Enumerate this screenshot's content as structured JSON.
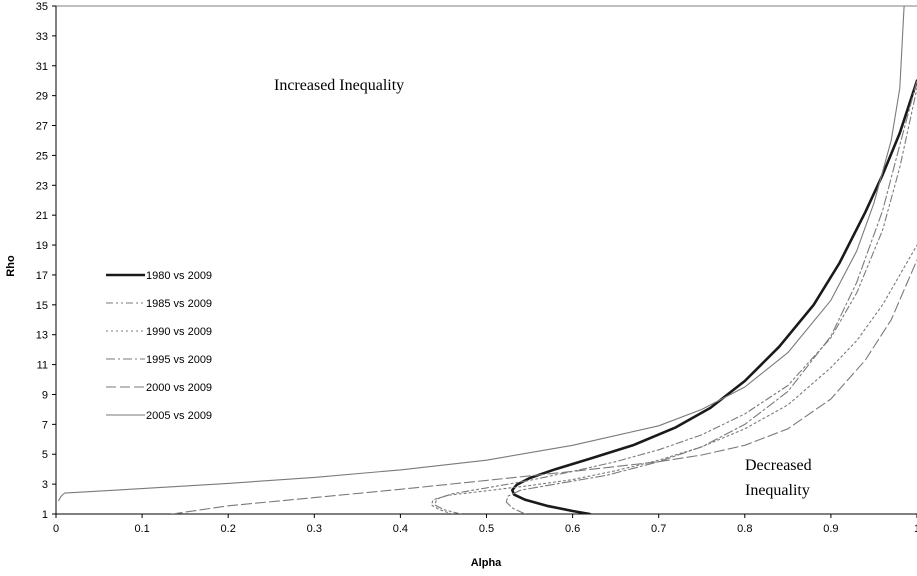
{
  "chart_data": {
    "type": "line",
    "title": "",
    "xlabel": "Alpha",
    "ylabel": "Rho",
    "xlim": [
      0,
      1
    ],
    "ylim": [
      1,
      35
    ],
    "x_ticks": [
      "0",
      "0.1",
      "0.2",
      "0.3",
      "0.4",
      "0.5",
      "0.6",
      "0.7",
      "0.8",
      "0.9",
      "1"
    ],
    "y_ticks": [
      "1",
      "3",
      "5",
      "7",
      "9",
      "11",
      "13",
      "15",
      "17",
      "19",
      "21",
      "23",
      "25",
      "27",
      "29",
      "31",
      "33",
      "35"
    ],
    "grid": false,
    "legend": "left-middle",
    "annotations": [
      "Increased Inequality",
      "Decreased Inequality"
    ],
    "series": [
      {
        "name": "1980 vs 2009",
        "color": "#1a1a1a",
        "dash": "solid",
        "x": [
          0.62,
          0.6,
          0.57,
          0.545,
          0.532,
          0.53,
          0.535,
          0.55,
          0.58,
          0.62,
          0.67,
          0.72,
          0.76,
          0.8,
          0.84,
          0.88,
          0.91,
          0.94,
          0.96,
          0.98,
          1.0
        ],
        "y": [
          1.0,
          1.2,
          1.55,
          1.95,
          2.3,
          2.6,
          2.95,
          3.4,
          4.0,
          4.7,
          5.6,
          6.8,
          8.1,
          9.9,
          12.2,
          15.0,
          17.8,
          21.2,
          23.7,
          26.5,
          30.0
        ]
      },
      {
        "name": "1985 vs 2009",
        "color": "#7a7a7a",
        "dash": "dash-dot-dot",
        "x": [
          0.47,
          0.45,
          0.44,
          0.442,
          0.46,
          0.5,
          0.55,
          0.6,
          0.65,
          0.7,
          0.75,
          0.8,
          0.85,
          0.9,
          0.93,
          0.96,
          0.98,
          1.0
        ],
        "y": [
          1.0,
          1.3,
          1.6,
          2.0,
          2.35,
          2.75,
          3.25,
          3.85,
          4.5,
          5.3,
          6.3,
          7.7,
          9.6,
          12.8,
          15.8,
          20.0,
          24.2,
          29.5
        ]
      },
      {
        "name": "1990 vs 2009",
        "color": "#7a7a7a",
        "dash": "dotted",
        "x": [
          0.46,
          0.445,
          0.436,
          0.438,
          0.455,
          0.5,
          0.55,
          0.6,
          0.65,
          0.7,
          0.75,
          0.8,
          0.85,
          0.9,
          0.93,
          0.96,
          0.98,
          1.0
        ],
        "y": [
          1.0,
          1.3,
          1.6,
          1.95,
          2.25,
          2.55,
          2.9,
          3.3,
          3.9,
          4.6,
          5.5,
          6.7,
          8.3,
          10.8,
          12.6,
          15.0,
          17.0,
          19.0
        ]
      },
      {
        "name": "1995 vs 2009",
        "color": "#7a7a7a",
        "dash": "dash-dot",
        "x": [
          0.545,
          0.53,
          0.523,
          0.525,
          0.54,
          0.58,
          0.64,
          0.7,
          0.75,
          0.8,
          0.85,
          0.9,
          0.93,
          0.96,
          0.98,
          1.0
        ],
        "y": [
          1.0,
          1.4,
          1.8,
          2.2,
          2.6,
          3.0,
          3.6,
          4.5,
          5.5,
          7.0,
          9.2,
          12.9,
          16.5,
          21.3,
          25.7,
          30.0
        ]
      },
      {
        "name": "2000 vs 2009",
        "color": "#7a7a7a",
        "dash": "long-dash",
        "x": [
          0.135,
          0.2,
          0.3,
          0.4,
          0.5,
          0.6,
          0.7,
          0.75,
          0.8,
          0.85,
          0.9,
          0.94,
          0.97,
          1.0
        ],
        "y": [
          1.0,
          1.55,
          2.1,
          2.65,
          3.25,
          3.85,
          4.5,
          4.95,
          5.6,
          6.7,
          8.7,
          11.3,
          14.0,
          18.0
        ]
      },
      {
        "name": "2005 vs 2009",
        "color": "#7a7a7a",
        "dash": "solid",
        "x": [
          0.003,
          0.006,
          0.01,
          0.1,
          0.2,
          0.3,
          0.4,
          0.5,
          0.6,
          0.7,
          0.75,
          0.8,
          0.85,
          0.9,
          0.93,
          0.95,
          0.97,
          0.98,
          0.985
        ],
        "y": [
          1.9,
          2.2,
          2.4,
          2.7,
          3.05,
          3.45,
          3.95,
          4.6,
          5.6,
          6.9,
          8.0,
          9.5,
          11.8,
          15.3,
          18.6,
          21.8,
          26.0,
          29.5,
          35.0
        ]
      }
    ]
  }
}
